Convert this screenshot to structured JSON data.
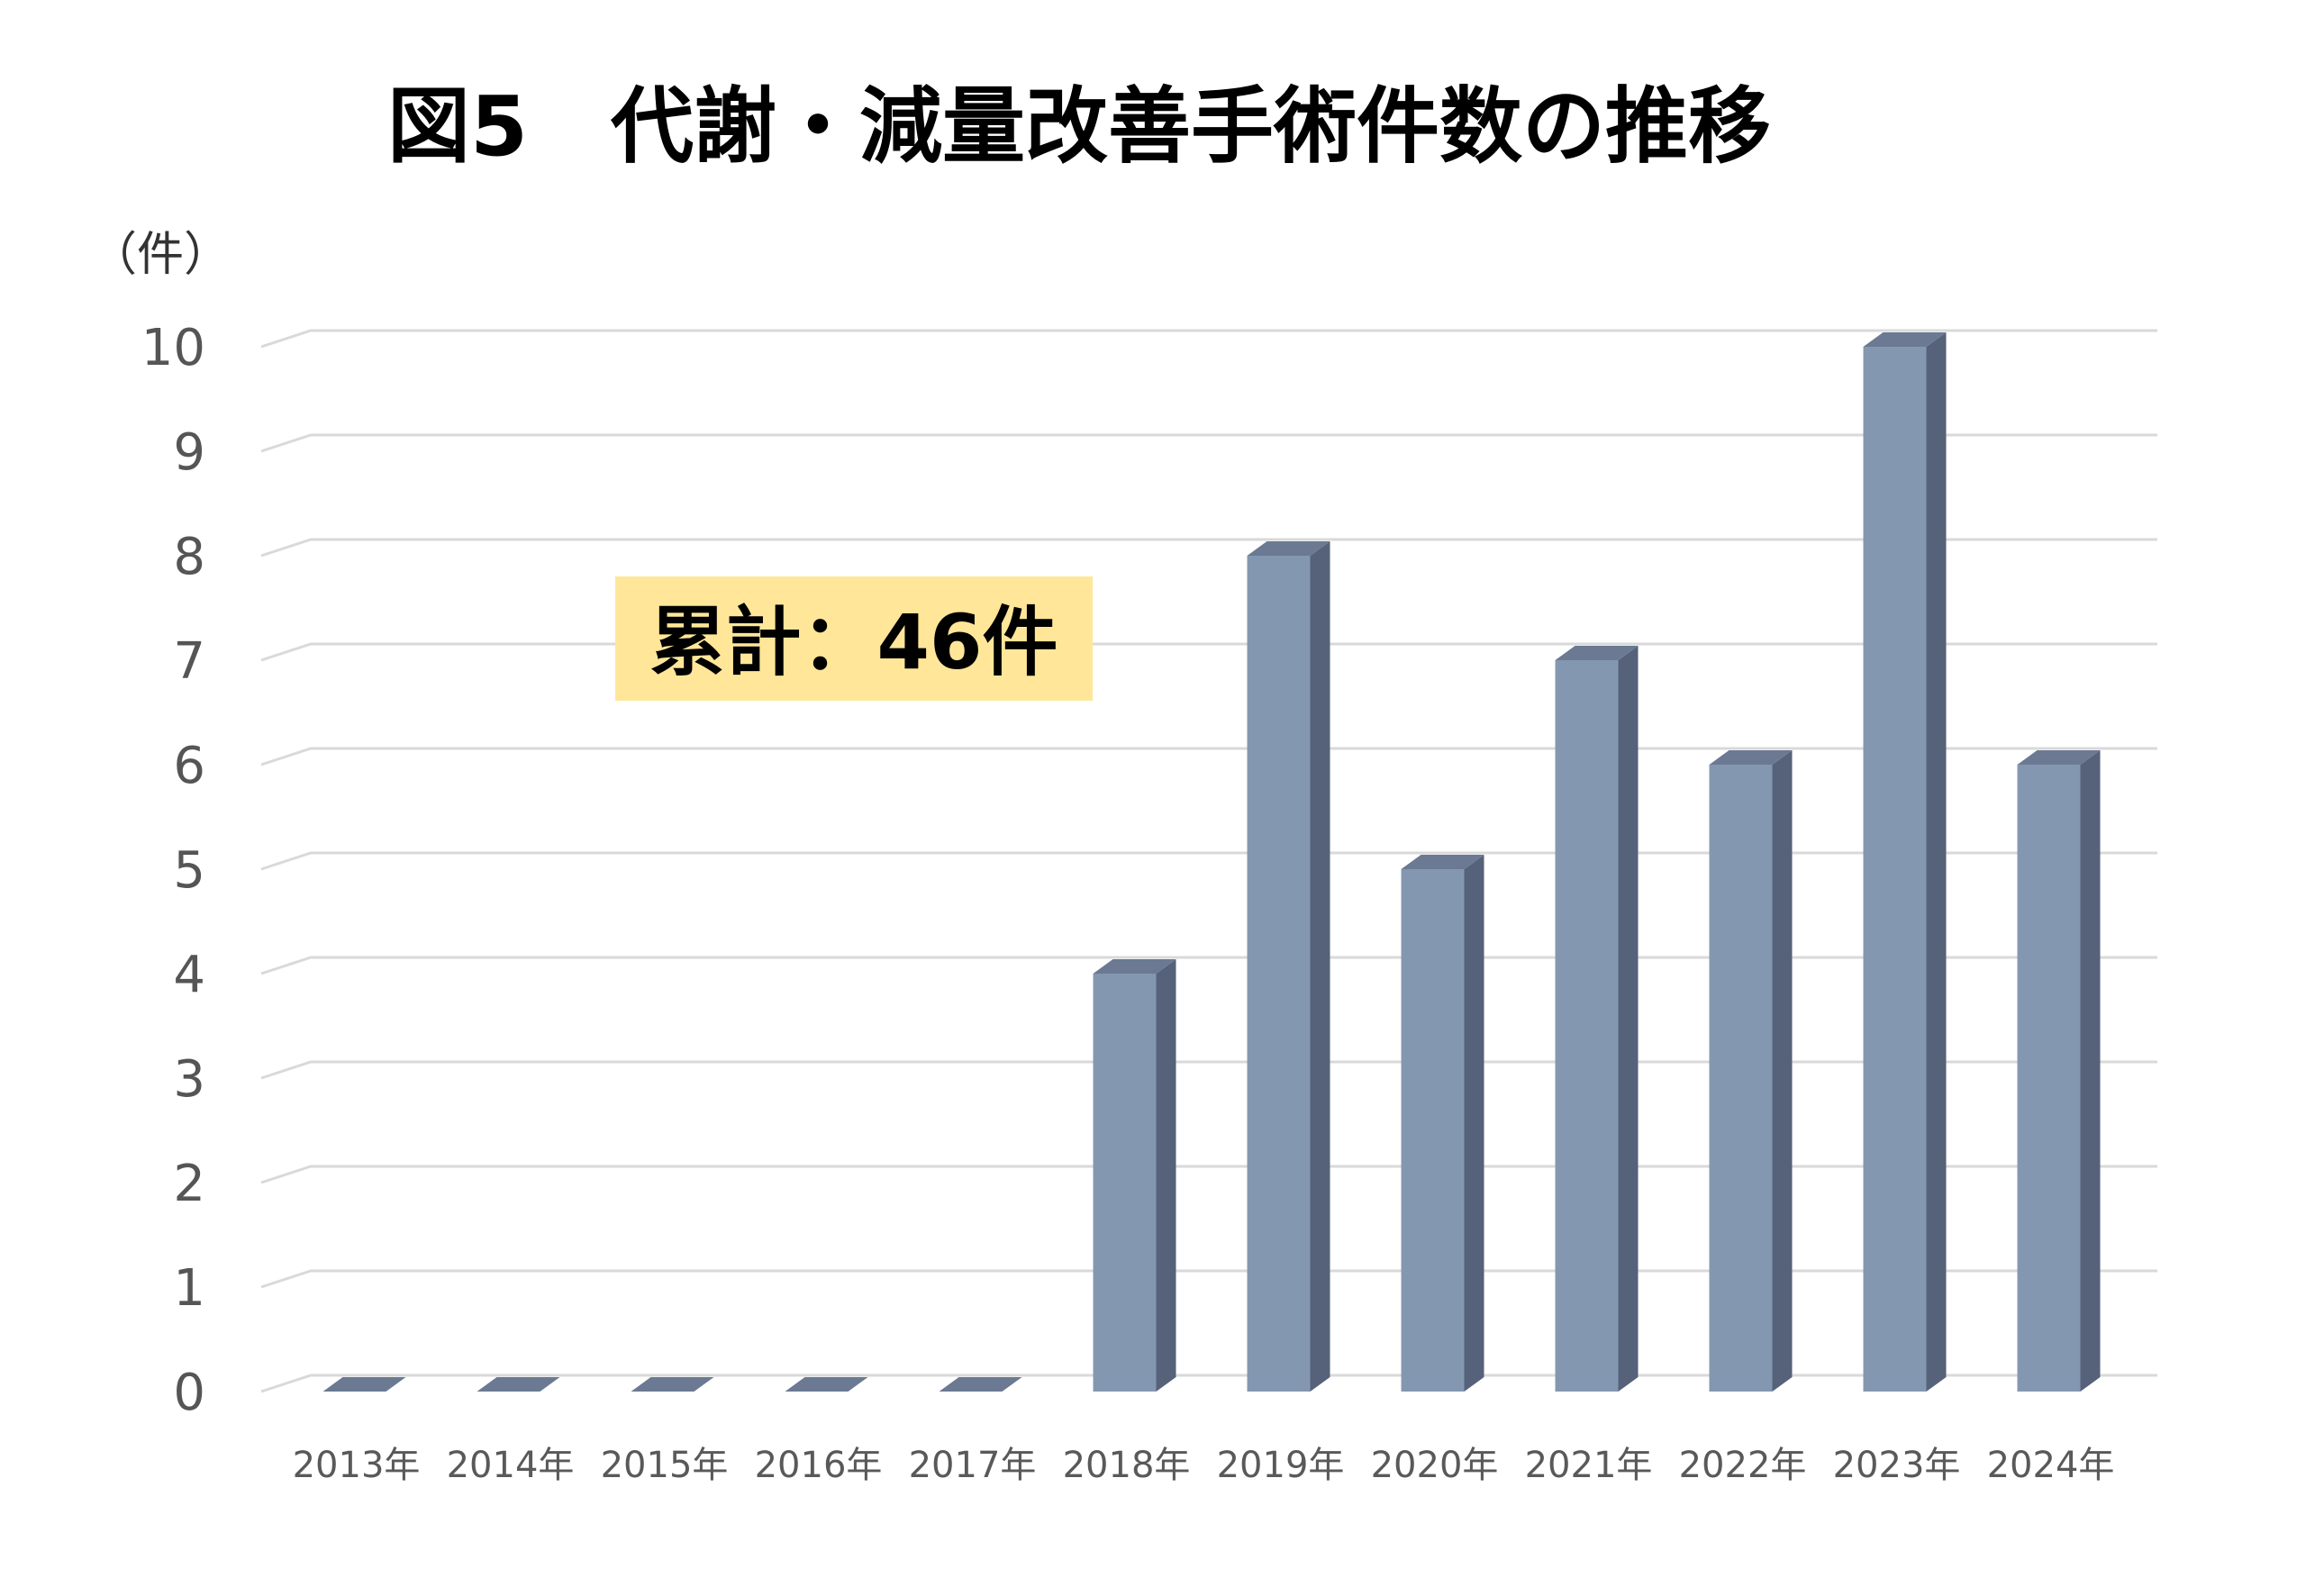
{
  "chart_data": {
    "type": "bar",
    "title": "図5　代謝・減量改善手術件数の推移",
    "ylabel": "（件）",
    "xlabel": "",
    "categories": [
      "2013年",
      "2014年",
      "2015年",
      "2016年",
      "2017年",
      "2018年",
      "2019年",
      "2020年",
      "2021年",
      "2022年",
      "2023年",
      "2024年"
    ],
    "values": [
      0,
      0,
      0,
      0,
      0,
      4,
      8,
      5,
      7,
      6,
      10,
      6
    ],
    "ylim": [
      0,
      10
    ],
    "yticks": [
      "0",
      "1",
      "2",
      "3",
      "4",
      "5",
      "6",
      "7",
      "8",
      "9",
      "10"
    ],
    "grid": true,
    "style": "3d-column",
    "annotation": "累計：46件",
    "colors": {
      "bar_front": "#8497b0",
      "bar_side": "#56627a",
      "bar_top": "#6b7a92",
      "annotation_bg": "#ffe699",
      "grid": "#d9d9d9"
    }
  }
}
